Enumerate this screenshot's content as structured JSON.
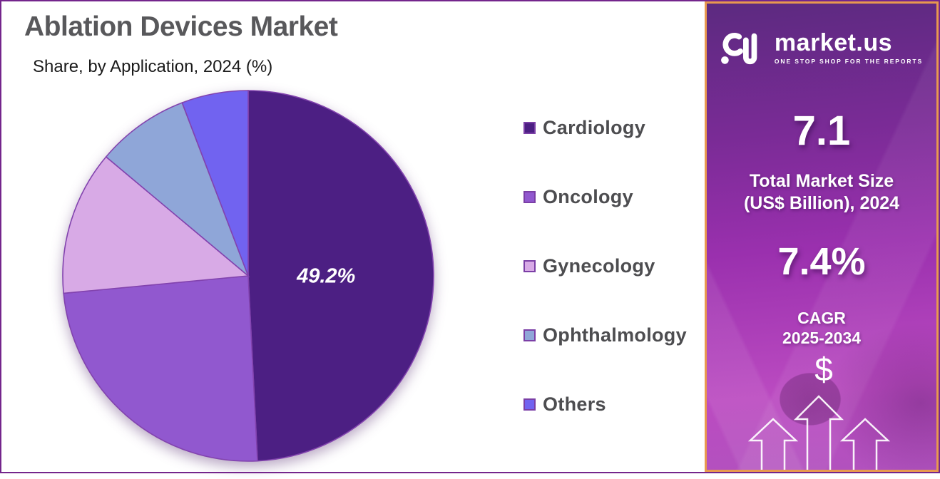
{
  "header": {
    "title": "Ablation Devices Market",
    "subtitle": "Share, by Application, 2024 (%)"
  },
  "chart_data": {
    "type": "pie",
    "title": "Ablation Devices Market",
    "subtitle": "Share, by Application, 2024 (%)",
    "categories": [
      "Cardiology",
      "Oncology",
      "Gynecology",
      "Ophthalmology",
      "Others"
    ],
    "values": [
      49.2,
      24.3,
      12.6,
      8.1,
      5.8
    ],
    "slice_labels": [
      "49.2%",
      "",
      "",
      "",
      ""
    ],
    "colors": [
      "#4C1F83",
      "#9158CF",
      "#D8AAE6",
      "#8FA6D8",
      "#7163F0"
    ],
    "stroke_color": "#8243AE",
    "start_angle_deg": 0,
    "direction": "clockwise",
    "legend_position": "right",
    "slice_label_color": "#FFFFFF",
    "units": "%"
  },
  "side_panel": {
    "logo": {
      "brand": "market.us",
      "tagline": "ONE STOP SHOP FOR THE REPORTS"
    },
    "market_size_value": "7.1",
    "market_size_label_line1": "Total Market Size",
    "market_size_label_line2": "(US$ Billion), 2024",
    "cagr_value": "7.4%",
    "cagr_label_line1": "CAGR",
    "cagr_label_line2": "2025-2034",
    "dollar_symbol": "$"
  },
  "theme": {
    "frame_border": "#74258C",
    "panel_border": "#E8984F",
    "panel_gradient_top": "#5C2A80",
    "panel_gradient_mid": "#9A30AE",
    "panel_gradient_bottom": "#BB4BC1",
    "title_color": "#58585B",
    "subtitle_color": "#1A1A1A",
    "legend_text_color": "#4D4D50",
    "legend_swatch_border": "#7B3FA6"
  }
}
